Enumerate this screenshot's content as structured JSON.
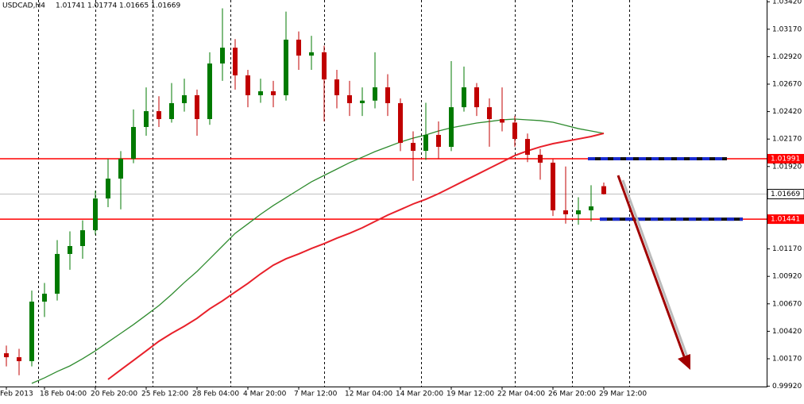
{
  "chart_data": {
    "type": "candlestick",
    "title": "USDCAD,H4",
    "categories": [
      "Feb 2013",
      null,
      null,
      "18 Feb 04:00",
      null,
      null,
      null,
      "20 Feb 20:00",
      null,
      null,
      null,
      "25 Feb 12:00",
      null,
      null,
      null,
      "28 Feb 04:00",
      null,
      null,
      null,
      "4 Mar 20:00",
      null,
      null,
      null,
      "7 Mar 12:00",
      null,
      null,
      null,
      "12 Mar 04:00",
      null,
      null,
      null,
      "14 Mar 20:00",
      null,
      null,
      null,
      "19 Mar 12:00",
      null,
      null,
      null,
      "22 Mar 04:00",
      null,
      null,
      null,
      "26 Mar 20:00",
      null,
      null,
      null,
      "29 Mar 12:00"
    ],
    "open": [
      1.0022,
      1.00184,
      1.00148,
      1.0069,
      1.00762,
      1.01124,
      1.01196,
      1.0134,
      1.01629,
      1.0181,
      1.01991,
      1.0228,
      1.02424,
      1.02352,
      1.02497,
      1.02569,
      1.02352,
      1.02858,
      1.03002,
      1.0275,
      1.02569,
      1.02605,
      1.02569,
      1.03075,
      1.0293,
      1.0296,
      1.02713,
      1.02569,
      1.02497,
      1.0252,
      1.02641,
      1.02497,
      1.02135,
      1.02063,
      1.02208,
      1.02099,
      1.0246,
      1.02641,
      1.0246,
      1.02352,
      1.0232,
      1.02171,
      1.02027,
      1.01955,
      1.01521,
      1.01485,
      1.01521,
      1.01741
    ],
    "high": [
      1.0029,
      1.0026,
      1.0079,
      1.0086,
      1.0125,
      1.0133,
      1.0143,
      1.017,
      1.0199,
      1.0206,
      1.0244,
      1.0264,
      1.0256,
      1.0268,
      1.0272,
      1.0262,
      1.0296,
      1.0336,
      1.0308,
      1.028,
      1.0272,
      1.027,
      1.0333,
      1.0315,
      1.0311,
      1.0302,
      1.028,
      1.027,
      1.0264,
      1.0296,
      1.0276,
      1.0254,
      1.0224,
      1.025,
      1.0233,
      1.0288,
      1.0283,
      1.0268,
      1.0254,
      1.0264,
      1.0238,
      1.0222,
      1.0208,
      1.0199,
      1.0192,
      1.0164,
      1.0175,
      1.01774
    ],
    "low": [
      1.001,
      1.0002,
      1.001,
      1.0055,
      1.007,
      1.0098,
      1.0108,
      1.013,
      1.0155,
      1.0153,
      1.0195,
      1.022,
      1.0228,
      1.0232,
      1.0242,
      1.022,
      1.023,
      1.027,
      1.0262,
      1.0246,
      1.025,
      1.0246,
      1.0252,
      1.028,
      1.028,
      1.0233,
      1.0245,
      1.0238,
      1.0238,
      1.0245,
      1.0238,
      1.0206,
      1.0179,
      1.0198,
      1.0199,
      1.0206,
      1.0242,
      1.0238,
      1.021,
      1.0224,
      1.021,
      1.0196,
      1.018,
      1.0147,
      1.014,
      1.0139,
      1.0142,
      1.01665
    ],
    "close": [
      1.00184,
      1.00148,
      1.0069,
      1.00762,
      1.01124,
      1.01196,
      1.0134,
      1.01629,
      1.0181,
      1.01991,
      1.0228,
      1.02424,
      1.02352,
      1.02497,
      1.02569,
      1.02352,
      1.02858,
      1.03002,
      1.0275,
      1.02569,
      1.02605,
      1.02569,
      1.03075,
      1.0293,
      1.0296,
      1.02713,
      1.02569,
      1.02497,
      1.0252,
      1.02641,
      1.02497,
      1.02135,
      1.02063,
      1.02208,
      1.02099,
      1.0246,
      1.02641,
      1.0246,
      1.02352,
      1.0232,
      1.02171,
      1.02027,
      1.01955,
      1.01521,
      1.01485,
      1.01521,
      1.01557,
      1.01669
    ],
    "up_color": "#007a00",
    "down_color": "#c00000",
    "series": [
      {
        "color": "#2e8b2e",
        "values": [
          null,
          null,
          0.99946,
          0.99996,
          1.00054,
          1.00105,
          1.0017,
          1.00242,
          1.00322,
          1.00401,
          1.00481,
          1.00567,
          1.00654,
          1.00755,
          1.00864,
          1.00965,
          1.0108,
          1.01196,
          1.01312,
          1.01398,
          1.01485,
          1.01565,
          1.01637,
          1.01709,
          1.01781,
          1.01839,
          1.01897,
          1.01955,
          1.02005,
          1.02056,
          1.02099,
          1.02143,
          1.02179,
          1.02208,
          1.02244,
          1.02273,
          1.02294,
          1.02316,
          1.0233,
          1.02345,
          1.02352,
          1.02345,
          1.02338,
          1.02323,
          1.02294,
          1.02265,
          1.02244,
          1.02222
        ]
      },
      {
        "color": "#e8202a",
        "values": [
          null,
          null,
          null,
          null,
          null,
          null,
          null,
          null,
          0.99982,
          1.00069,
          1.00155,
          1.00242,
          1.00329,
          1.00401,
          1.00466,
          1.00538,
          1.00625,
          1.00697,
          1.00777,
          1.00856,
          1.00943,
          1.01022,
          1.0108,
          1.01124,
          1.01174,
          1.01218,
          1.01268,
          1.01312,
          1.01362,
          1.0142,
          1.01478,
          1.01528,
          1.01579,
          1.01622,
          1.01673,
          1.01731,
          1.01789,
          1.01846,
          1.01904,
          1.01962,
          1.0202,
          1.02063,
          1.02099,
          1.02128,
          1.0215,
          1.02171,
          1.02193,
          1.02222
        ]
      }
    ],
    "levels": [
      {
        "value": 1.01991,
        "color": "#ff0000"
      },
      {
        "value": 1.01441,
        "color": "#ff0000"
      }
    ],
    "ylim": [
      0.99917,
      1.03436
    ],
    "yticks": [
      {
        "value": 1.0342,
        "label": "1.03420"
      },
      {
        "value": 1.0317,
        "label": "1.03170"
      },
      {
        "value": 1.0292,
        "label": "1.02920"
      },
      {
        "value": 1.0267,
        "label": "1.02670"
      },
      {
        "value": 1.0242,
        "label": "1.02420"
      },
      {
        "value": 1.0217,
        "label": "1.02170"
      },
      {
        "value": 1.0192,
        "label": "1.01920"
      },
      {
        "value": 1.0117,
        "label": "1.01170"
      },
      {
        "value": 1.0092,
        "label": "1.00920"
      },
      {
        "value": 1.0067,
        "label": "1.00670"
      },
      {
        "value": 1.0042,
        "label": "1.00420"
      },
      {
        "value": 1.0017,
        "label": "1.00170"
      },
      {
        "value": 0.9992,
        "label": "0.99920"
      }
    ]
  }
}
